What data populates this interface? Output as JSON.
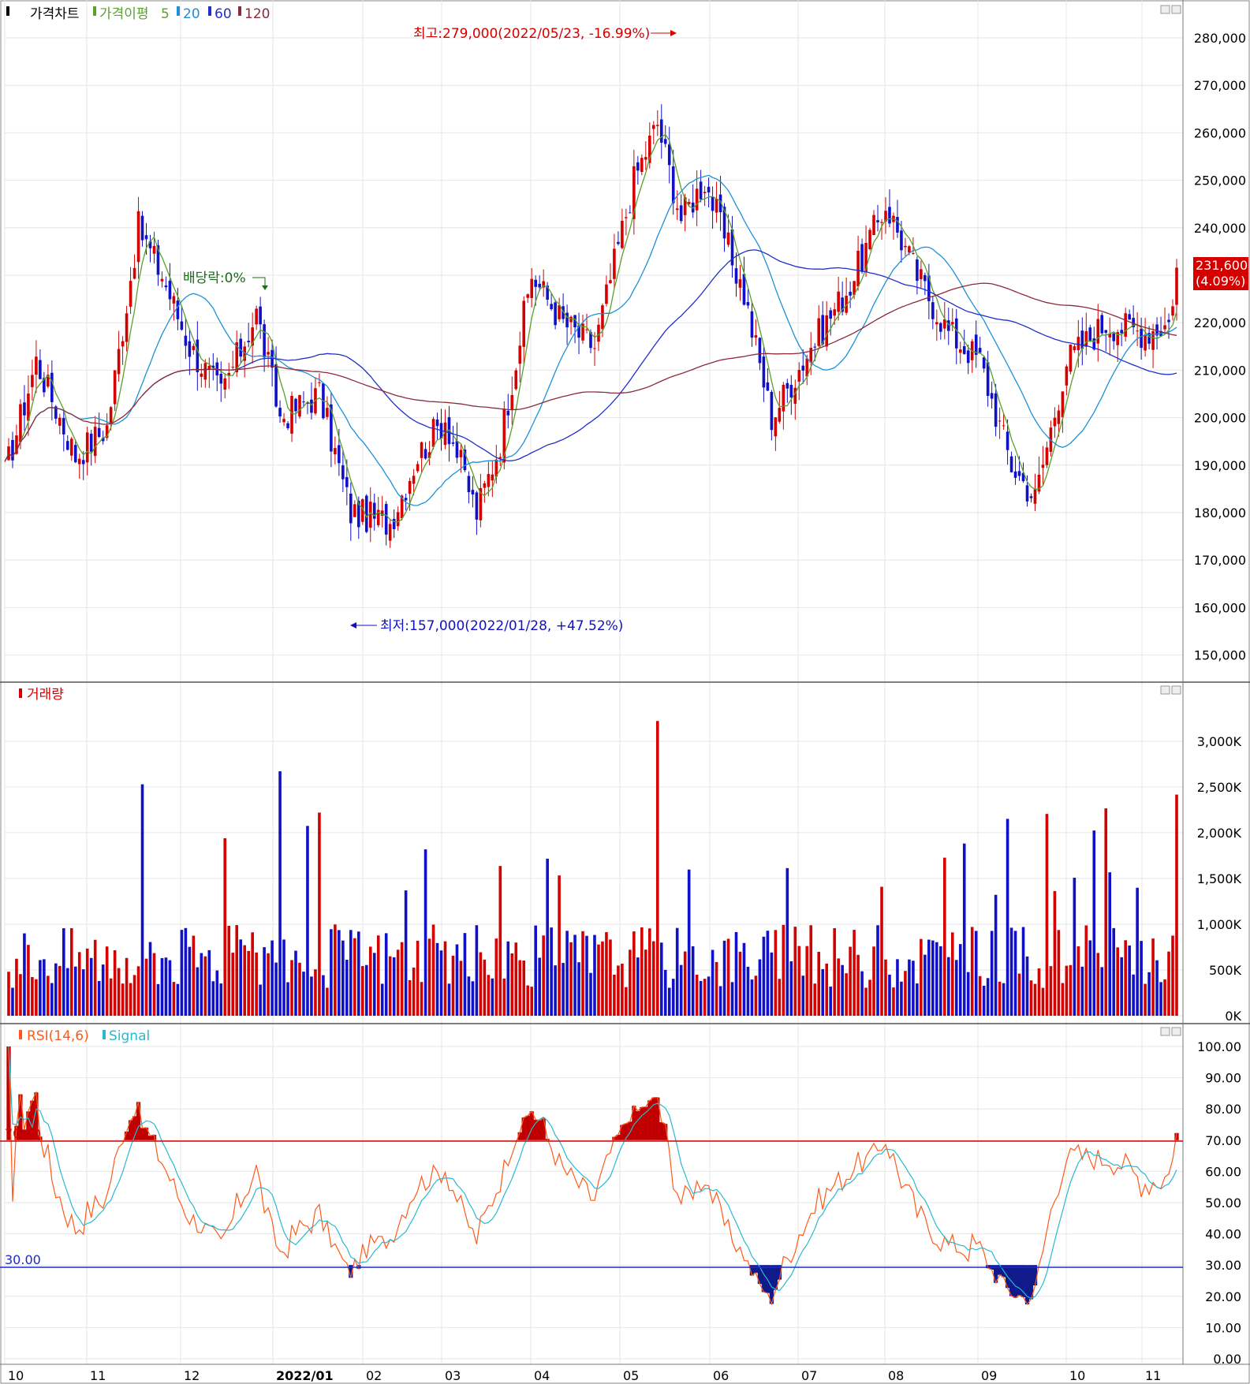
{
  "price_panel": {
    "title": "가격차트",
    "ma_label": "가격이평",
    "ma_periods": [
      "5",
      "20",
      "60",
      "120"
    ],
    "ma_colors": [
      "#5aa02c",
      "#1e90d8",
      "#1f2fc8",
      "#8b2a3a"
    ],
    "high_note": "최고:279,000(2022/05/23, -16.99%)",
    "low_note": "최저:157,000(2022/01/28, +47.52%)",
    "dividend_note": "배당락:0%",
    "current_price": "231,600",
    "current_change": "(4.09%)",
    "y_ticks": [
      "280,000",
      "270,000",
      "260,000",
      "250,000",
      "240,000",
      "230,000",
      "220,000",
      "210,000",
      "200,000",
      "190,000",
      "180,000",
      "170,000",
      "160,000",
      "150,000"
    ]
  },
  "volume_panel": {
    "title": "거래량",
    "y_ticks": [
      "3,000K",
      "2,500K",
      "2,000K",
      "1,500K",
      "1,000K",
      "500K",
      "0K"
    ]
  },
  "rsi_panel": {
    "title": "RSI(14,6)",
    "signal_label": "Signal",
    "upper_level": "70.00",
    "lower_level": "30.00",
    "y_ticks": [
      "100.00",
      "90.00",
      "80.00",
      "70.00",
      "60.00",
      "50.00",
      "40.00",
      "30.00",
      "20.00",
      "10.00",
      "0.00"
    ]
  },
  "x_axis": {
    "ticks": [
      "10",
      "11",
      "12",
      "2022/01",
      "02",
      "03",
      "04",
      "05",
      "06",
      "07",
      "08",
      "09",
      "10",
      "11"
    ]
  },
  "colors": {
    "up": "#d40000",
    "down": "#1010c8",
    "rsi": "#ff5a1a",
    "signal": "#2ab8d0",
    "upper_line": "#d40000",
    "lower_line": "#1a2ad0"
  },
  "chart_data": {
    "type": "candlestick",
    "price_range": [
      145000,
      285000
    ],
    "high": {
      "value": 279000,
      "date": "2022/05/23"
    },
    "low": {
      "value": 157000,
      "date": "2022/01/28"
    },
    "last_close": 231600,
    "last_change_pct": 4.09,
    "monthly_close_estimates": [
      {
        "month": "2021/10",
        "close": 190000
      },
      {
        "month": "2021/11",
        "close": 238000
      },
      {
        "month": "2021/12",
        "close": 203000
      },
      {
        "month": "2022/01",
        "close": 170000
      },
      {
        "month": "2022/02",
        "close": 193000
      },
      {
        "month": "2022/03",
        "close": 212000
      },
      {
        "month": "2022/04",
        "close": 230000
      },
      {
        "month": "2022/05",
        "close": 250000
      },
      {
        "month": "2022/06",
        "close": 205000
      },
      {
        "month": "2022/07",
        "close": 232000
      },
      {
        "month": "2022/08",
        "close": 222000
      },
      {
        "month": "2022/09",
        "close": 182000
      },
      {
        "month": "2022/10",
        "close": 212000
      },
      {
        "month": "2022/11",
        "close": 231600
      }
    ],
    "volume_range": [
      0,
      3300000
    ],
    "volume_peak": 3220000,
    "rsi_range": [
      0,
      100
    ],
    "rsi_levels": [
      70,
      30
    ]
  }
}
